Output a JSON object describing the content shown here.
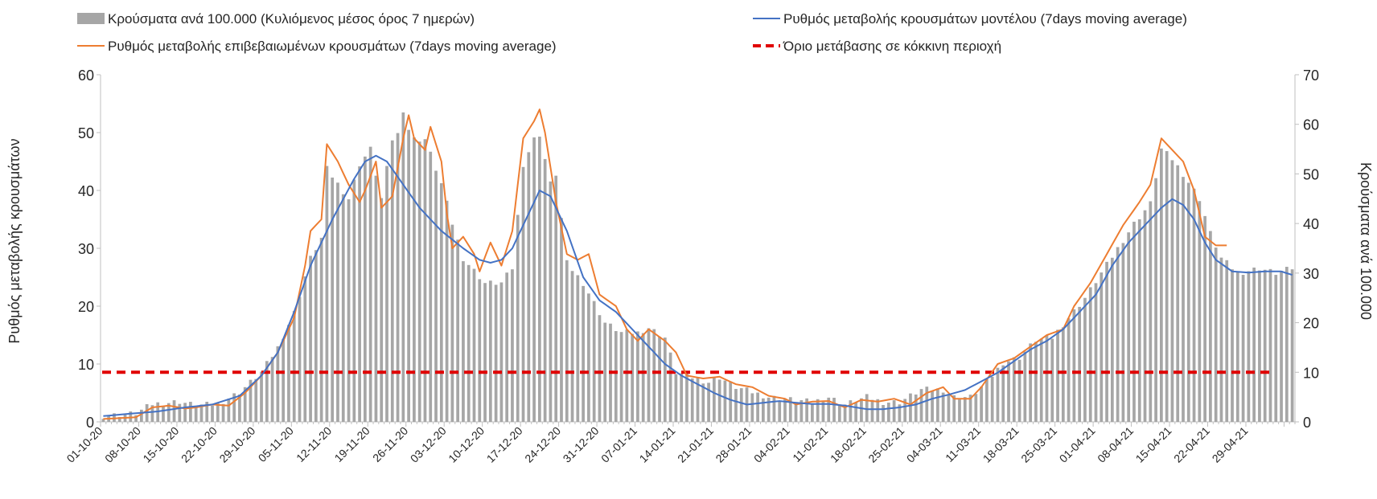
{
  "chart_data": {
    "type": "bar+line",
    "legend": {
      "placement": "top",
      "items": [
        {
          "label": "Κρούσματα ανά 100.000 (Κυλιόμενος μέσος όρος 7 ημερών)",
          "kind": "bar",
          "color": "#a6a6a6"
        },
        {
          "label": "Ρυθμός μεταβολής κρουσμάτων μοντέλου (7days moving average)",
          "kind": "line",
          "color": "#4472c4"
        },
        {
          "label": "Ρυθμός μεταβολής επιβεβαιωμένων κρουσμάτων (7days moving average)",
          "kind": "line",
          "color": "#ed7d31"
        },
        {
          "label": "Όριο μετάβασης σε κόκκινη περιοχή",
          "kind": "dashed",
          "color": "#e00000"
        }
      ]
    },
    "ylabel_left": "Ρυθμός μεταβολής κρουσμάτων",
    "ylabel_right": "Κρούσματα ανά 100.000",
    "ylim_left": [
      0,
      60
    ],
    "yticks_left": [
      0,
      10,
      20,
      30,
      40,
      50,
      60
    ],
    "ylim_right": [
      0,
      70
    ],
    "yticks_right": [
      0,
      10,
      20,
      30,
      40,
      50,
      60,
      70
    ],
    "x_tick_labels": [
      "01-10-20",
      "08-10-20",
      "15-10-20",
      "22-10-20",
      "29-10-20",
      "05-11-20",
      "12-11-20",
      "19-11-20",
      "26-11-20",
      "03-12-20",
      "10-12-20",
      "17-12-20",
      "24-12-20",
      "31-12-20",
      "07-01-21",
      "14-01-21",
      "21-01-21",
      "28-01-21",
      "04-02-21",
      "11-02-21",
      "18-02-21",
      "25-02-21",
      "04-03-21",
      "11-03-21",
      "18-03-21",
      "25-03-21",
      "01-04-21",
      "08-04-21",
      "15-04-21",
      "22-04-21",
      "29-04-21"
    ],
    "n_days": 219,
    "threshold": {
      "value": 10,
      "axis": "right"
    },
    "bars_axis": "right",
    "bar_keyframes": [
      [
        0,
        1.2
      ],
      [
        6,
        1.7
      ],
      [
        9,
        3.6
      ],
      [
        14,
        4.1
      ],
      [
        17,
        3.3
      ],
      [
        21,
        3.6
      ],
      [
        25,
        6
      ],
      [
        29,
        10
      ],
      [
        32,
        15
      ],
      [
        35,
        22
      ],
      [
        38,
        33
      ],
      [
        40,
        37
      ],
      [
        41,
        51
      ],
      [
        43,
        48
      ],
      [
        45,
        45
      ],
      [
        47,
        52
      ],
      [
        49,
        55
      ],
      [
        51,
        45
      ],
      [
        53,
        57
      ],
      [
        54,
        58
      ],
      [
        55,
        63
      ],
      [
        56,
        59
      ],
      [
        57,
        57
      ],
      [
        59,
        57
      ],
      [
        62,
        48
      ],
      [
        64,
        40
      ],
      [
        66,
        33
      ],
      [
        70,
        28
      ],
      [
        73,
        28
      ],
      [
        75,
        31
      ],
      [
        77,
        52
      ],
      [
        79,
        57
      ],
      [
        80,
        58
      ],
      [
        81,
        53
      ],
      [
        82,
        48
      ],
      [
        83,
        50
      ],
      [
        85,
        32
      ],
      [
        88,
        28
      ],
      [
        92,
        20
      ],
      [
        95,
        18
      ],
      [
        98,
        18
      ],
      [
        100,
        19
      ],
      [
        103,
        17
      ],
      [
        105,
        10
      ],
      [
        108,
        9
      ],
      [
        111,
        8
      ],
      [
        113,
        9
      ],
      [
        116,
        7
      ],
      [
        119,
        6
      ],
      [
        122,
        5
      ],
      [
        126,
        4.5
      ],
      [
        130,
        4
      ],
      [
        133,
        5
      ],
      [
        136,
        3.5
      ],
      [
        140,
        5
      ],
      [
        143,
        4
      ],
      [
        146,
        4
      ],
      [
        150,
        6.5
      ],
      [
        154,
        6.5
      ],
      [
        156,
        5
      ],
      [
        159,
        5
      ],
      [
        162,
        8
      ],
      [
        165,
        12
      ],
      [
        168,
        13
      ],
      [
        171,
        16.5
      ],
      [
        174,
        17
      ],
      [
        177,
        21
      ],
      [
        180,
        25
      ],
      [
        183,
        30
      ],
      [
        186,
        35
      ],
      [
        189,
        40
      ],
      [
        192,
        44
      ],
      [
        194,
        55
      ],
      [
        196,
        53
      ],
      [
        198,
        50
      ],
      [
        201,
        45
      ],
      [
        203,
        38
      ],
      [
        205,
        33
      ],
      [
        208,
        30
      ],
      [
        212,
        31
      ],
      [
        215,
        30
      ],
      [
        218,
        31
      ]
    ],
    "model_keyframes": [
      [
        0,
        1
      ],
      [
        6,
        1.5
      ],
      [
        10,
        1.8
      ],
      [
        15,
        2.5
      ],
      [
        20,
        3
      ],
      [
        25,
        4.5
      ],
      [
        29,
        8
      ],
      [
        32,
        12
      ],
      [
        35,
        19
      ],
      [
        38,
        27
      ],
      [
        42,
        35
      ],
      [
        46,
        42
      ],
      [
        48,
        45
      ],
      [
        50,
        46
      ],
      [
        52,
        45
      ],
      [
        55,
        41
      ],
      [
        58,
        37
      ],
      [
        62,
        33
      ],
      [
        66,
        30
      ],
      [
        69,
        28
      ],
      [
        71,
        27.5
      ],
      [
        73,
        28
      ],
      [
        75,
        30
      ],
      [
        77,
        34
      ],
      [
        79,
        38
      ],
      [
        80,
        40
      ],
      [
        82,
        39
      ],
      [
        85,
        33
      ],
      [
        88,
        25
      ],
      [
        91,
        21
      ],
      [
        94,
        19
      ],
      [
        97,
        16
      ],
      [
        100,
        13
      ],
      [
        103,
        10
      ],
      [
        106,
        8
      ],
      [
        109,
        6.5
      ],
      [
        112,
        5
      ],
      [
        115,
        3.8
      ],
      [
        118,
        3
      ],
      [
        121,
        3.3
      ],
      [
        124,
        3.6
      ],
      [
        127,
        3.3
      ],
      [
        130,
        3.1
      ],
      [
        133,
        3.1
      ],
      [
        136,
        2.8
      ],
      [
        140,
        2.2
      ],
      [
        143,
        2.2
      ],
      [
        146,
        2.5
      ],
      [
        149,
        3
      ],
      [
        152,
        4
      ],
      [
        155,
        4.7
      ],
      [
        158,
        5.5
      ],
      [
        161,
        7
      ],
      [
        164,
        8.5
      ],
      [
        167,
        10.5
      ],
      [
        170,
        12.5
      ],
      [
        173,
        14
      ],
      [
        176,
        16
      ],
      [
        179,
        19
      ],
      [
        182,
        22
      ],
      [
        185,
        27
      ],
      [
        188,
        31
      ],
      [
        191,
        34
      ],
      [
        194,
        37
      ],
      [
        196,
        38.5
      ],
      [
        198,
        37.5
      ],
      [
        200,
        35
      ],
      [
        202,
        31
      ],
      [
        204,
        28
      ],
      [
        207,
        26
      ],
      [
        210,
        25.8
      ],
      [
        213,
        26
      ],
      [
        216,
        26
      ],
      [
        218,
        25.4
      ]
    ],
    "confirmed_keyframes": [
      [
        0,
        0.5
      ],
      [
        6,
        0.8
      ],
      [
        9,
        2.5
      ],
      [
        12,
        2.8
      ],
      [
        15,
        2.3
      ],
      [
        17,
        2.5
      ],
      [
        20,
        3
      ],
      [
        23,
        2.8
      ],
      [
        26,
        5
      ],
      [
        29,
        8
      ],
      [
        32,
        12
      ],
      [
        35,
        18
      ],
      [
        37,
        27
      ],
      [
        38,
        33
      ],
      [
        40,
        35
      ],
      [
        41,
        48
      ],
      [
        43,
        45
      ],
      [
        45,
        41
      ],
      [
        47,
        38
      ],
      [
        48,
        40
      ],
      [
        50,
        45
      ],
      [
        51,
        37
      ],
      [
        53,
        39
      ],
      [
        55,
        49
      ],
      [
        56,
        53
      ],
      [
        57,
        49
      ],
      [
        59,
        47
      ],
      [
        60,
        51
      ],
      [
        62,
        45
      ],
      [
        63,
        36
      ],
      [
        64,
        30
      ],
      [
        66,
        32
      ],
      [
        68,
        29
      ],
      [
        69,
        26
      ],
      [
        71,
        31
      ],
      [
        73,
        27
      ],
      [
        75,
        33
      ],
      [
        77,
        49
      ],
      [
        79,
        52
      ],
      [
        80,
        54
      ],
      [
        81,
        50
      ],
      [
        82,
        44
      ],
      [
        83,
        38
      ],
      [
        85,
        29
      ],
      [
        87,
        28
      ],
      [
        89,
        29
      ],
      [
        91,
        22
      ],
      [
        94,
        20
      ],
      [
        96,
        16
      ],
      [
        98,
        14
      ],
      [
        100,
        16
      ],
      [
        103,
        14
      ],
      [
        105,
        12
      ],
      [
        107,
        8
      ],
      [
        110,
        7.5
      ],
      [
        113,
        7.8
      ],
      [
        116,
        6.5
      ],
      [
        119,
        6
      ],
      [
        122,
        4.5
      ],
      [
        125,
        4
      ],
      [
        127,
        3
      ],
      [
        130,
        3.5
      ],
      [
        133,
        3.6
      ],
      [
        136,
        2.5
      ],
      [
        139,
        3.8
      ],
      [
        142,
        3.5
      ],
      [
        145,
        4
      ],
      [
        148,
        3
      ],
      [
        151,
        5
      ],
      [
        154,
        6
      ],
      [
        156,
        4
      ],
      [
        159,
        4
      ],
      [
        161,
        6
      ],
      [
        164,
        10
      ],
      [
        167,
        11
      ],
      [
        170,
        13
      ],
      [
        173,
        15
      ],
      [
        176,
        16
      ],
      [
        178,
        20
      ],
      [
        181,
        24
      ],
      [
        184,
        29
      ],
      [
        187,
        34
      ],
      [
        190,
        38
      ],
      [
        192,
        41
      ],
      [
        194,
        49
      ],
      [
        196,
        47
      ],
      [
        198,
        45
      ],
      [
        200,
        40
      ],
      [
        202,
        32
      ],
      [
        204,
        30.5
      ],
      [
        206,
        30.5
      ]
    ]
  }
}
